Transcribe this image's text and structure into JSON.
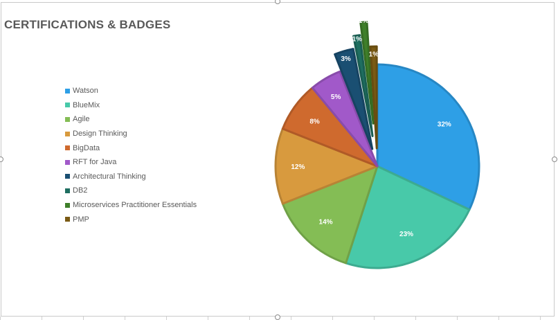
{
  "chart_data": {
    "type": "pie",
    "title": "CERTIFICATIONS & BADGES",
    "categories": [
      "Watson",
      "BlueMix",
      "Agile",
      "Design Thinking",
      "BigData",
      "RFT for Java",
      "Architectural Thinking",
      "DB2",
      "Microservices Practitioner Essentials",
      "PMP"
    ],
    "values": [
      32,
      23,
      14,
      12,
      8,
      5,
      3,
      1,
      1,
      1
    ],
    "labels": [
      "32%",
      "23%",
      "14%",
      "12%",
      "8%",
      "5%",
      "3%",
      "1%",
      "1%",
      "1%"
    ],
    "colors": [
      "#2e9fe6",
      "#48c9a9",
      "#84bd55",
      "#d89a3e",
      "#cf6a2e",
      "#a159c9",
      "#1a4f72",
      "#1e6e60",
      "#3f7f2a",
      "#7a5a14"
    ],
    "legend": "left"
  }
}
